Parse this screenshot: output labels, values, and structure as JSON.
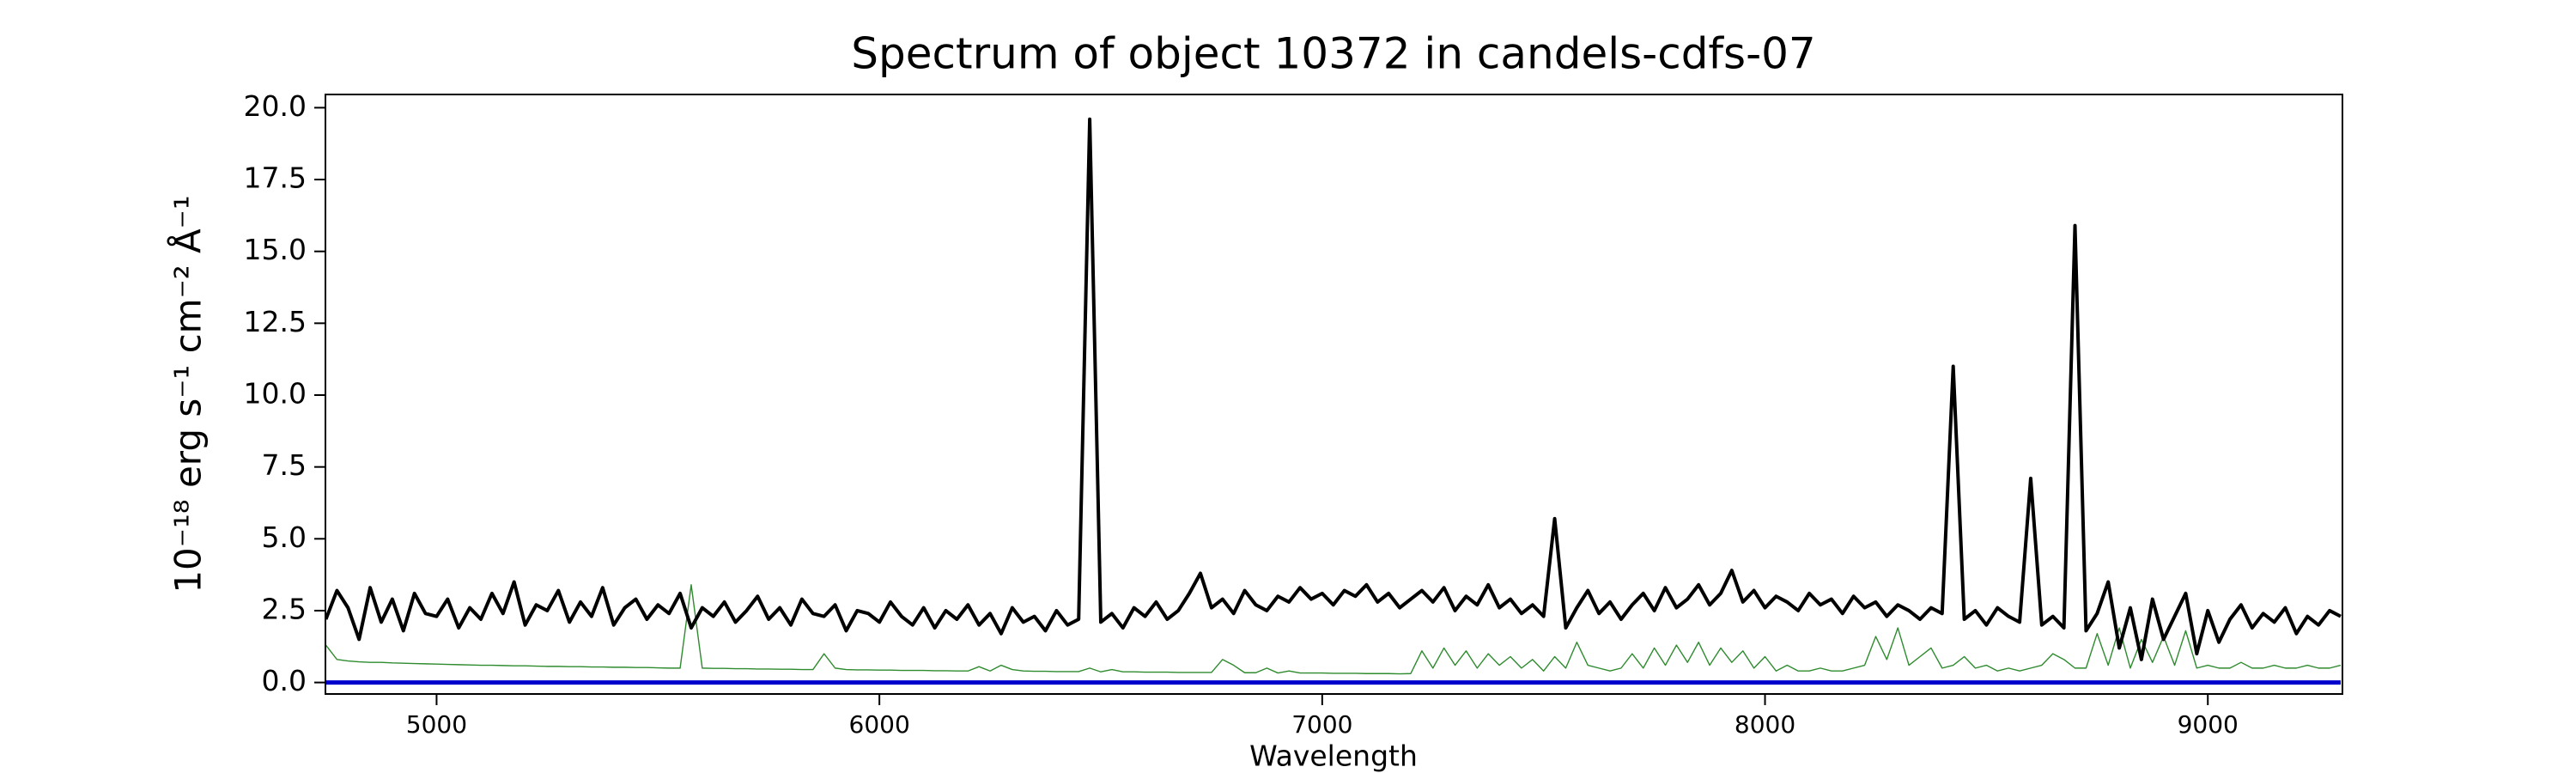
{
  "chart_data": {
    "type": "line",
    "title": "Spectrum of object 10372 in candels-cdfs-07",
    "x_label": "Wavelength",
    "y_label": "10⁻¹⁸ erg s⁻¹ cm⁻² Å⁻¹",
    "xlim": [
      4749,
      9304
    ],
    "ylim": [
      -0.4,
      20.46
    ],
    "xticks": [
      5000,
      6000,
      7000,
      8000,
      9000
    ],
    "yticks": [
      {
        "value": 0,
        "label": "0.0"
      },
      2.5,
      {
        "value": 5,
        "label": "5.0"
      },
      7.5,
      {
        "value": 10,
        "label": "10.0"
      },
      12.5,
      {
        "value": 15,
        "label": "15.0"
      },
      17.5,
      {
        "value": 20,
        "label": "20.0"
      }
    ],
    "x": [
      4750,
      4775,
      4800,
      4825,
      4850,
      4875,
      4900,
      4925,
      4950,
      4975,
      5000,
      5025,
      5050,
      5075,
      5100,
      5125,
      5150,
      5175,
      5200,
      5225,
      5250,
      5275,
      5300,
      5325,
      5350,
      5375,
      5400,
      5425,
      5450,
      5475,
      5500,
      5525,
      5550,
      5575,
      5600,
      5625,
      5650,
      5675,
      5700,
      5725,
      5750,
      5775,
      5800,
      5825,
      5850,
      5875,
      5900,
      5925,
      5950,
      5975,
      6000,
      6025,
      6050,
      6075,
      6100,
      6125,
      6150,
      6175,
      6200,
      6225,
      6250,
      6275,
      6300,
      6325,
      6350,
      6375,
      6400,
      6425,
      6450,
      6475,
      6500,
      6525,
      6550,
      6575,
      6600,
      6625,
      6650,
      6675,
      6700,
      6725,
      6750,
      6775,
      6800,
      6825,
      6850,
      6875,
      6900,
      6925,
      6950,
      6975,
      7000,
      7025,
      7050,
      7075,
      7100,
      7125,
      7150,
      7175,
      7200,
      7225,
      7250,
      7275,
      7300,
      7325,
      7350,
      7375,
      7400,
      7425,
      7450,
      7475,
      7500,
      7525,
      7550,
      7575,
      7600,
      7625,
      7650,
      7675,
      7700,
      7725,
      7750,
      7775,
      7800,
      7825,
      7850,
      7875,
      7900,
      7925,
      7950,
      7975,
      8000,
      8025,
      8050,
      8075,
      8100,
      8125,
      8150,
      8175,
      8200,
      8225,
      8250,
      8275,
      8300,
      8325,
      8350,
      8375,
      8400,
      8425,
      8450,
      8475,
      8500,
      8525,
      8550,
      8575,
      8600,
      8625,
      8650,
      8675,
      8700,
      8725,
      8750,
      8775,
      8800,
      8825,
      8850,
      8875,
      8900,
      8925,
      8950,
      8975,
      9000,
      9025,
      9050,
      9075,
      9100,
      9125,
      9150,
      9175,
      9200,
      9225,
      9250,
      9275,
      9300
    ],
    "series": [
      {
        "color": "#000000",
        "width": 4,
        "values": [
          2.2,
          3.2,
          2.6,
          1.5,
          3.3,
          2.1,
          2.9,
          1.8,
          3.1,
          2.4,
          2.3,
          2.9,
          1.9,
          2.6,
          2.2,
          3.1,
          2.4,
          3.5,
          2.0,
          2.7,
          2.5,
          3.2,
          2.1,
          2.8,
          2.3,
          3.3,
          2.0,
          2.6,
          2.9,
          2.2,
          2.7,
          2.4,
          3.1,
          1.9,
          2.6,
          2.3,
          2.8,
          2.1,
          2.5,
          3.0,
          2.2,
          2.6,
          2.0,
          2.9,
          2.4,
          2.3,
          2.7,
          1.8,
          2.5,
          2.4,
          2.1,
          2.8,
          2.3,
          2.0,
          2.6,
          1.9,
          2.5,
          2.2,
          2.7,
          2.0,
          2.4,
          1.7,
          2.6,
          2.1,
          2.3,
          1.8,
          2.5,
          2.0,
          2.2,
          19.6,
          2.1,
          2.4,
          1.9,
          2.6,
          2.3,
          2.8,
          2.2,
          2.5,
          3.1,
          3.8,
          2.6,
          2.9,
          2.4,
          3.2,
          2.7,
          2.5,
          3.0,
          2.8,
          3.3,
          2.9,
          3.1,
          2.7,
          3.2,
          3.0,
          3.4,
          2.8,
          3.1,
          2.6,
          2.9,
          3.2,
          2.8,
          3.3,
          2.5,
          3.0,
          2.7,
          3.4,
          2.6,
          2.9,
          2.4,
          2.7,
          2.3,
          5.7,
          1.9,
          2.6,
          3.2,
          2.4,
          2.8,
          2.2,
          2.7,
          3.1,
          2.5,
          3.3,
          2.6,
          2.9,
          3.4,
          2.7,
          3.1,
          3.9,
          2.8,
          3.2,
          2.6,
          3.0,
          2.8,
          2.5,
          3.1,
          2.7,
          2.9,
          2.4,
          3.0,
          2.6,
          2.8,
          2.3,
          2.7,
          2.5,
          2.2,
          2.6,
          2.4,
          11.0,
          2.2,
          2.5,
          2.0,
          2.6,
          2.3,
          2.1,
          7.1,
          2.0,
          2.3,
          1.9,
          15.9,
          1.8,
          2.4,
          3.5,
          1.2,
          2.6,
          0.8,
          2.9,
          1.5,
          2.3,
          3.1,
          1.0,
          2.5,
          1.4,
          2.2,
          2.7,
          1.9,
          2.4,
          2.1,
          2.6,
          1.7,
          2.3,
          2.0,
          2.5,
          2.3
        ]
      },
      {
        "color": "#2e8b2e",
        "width": 1.4,
        "values": [
          1.3,
          0.8,
          0.75,
          0.72,
          0.7,
          0.7,
          0.68,
          0.67,
          0.66,
          0.65,
          0.64,
          0.63,
          0.62,
          0.61,
          0.6,
          0.6,
          0.59,
          0.58,
          0.58,
          0.57,
          0.56,
          0.56,
          0.55,
          0.55,
          0.54,
          0.54,
          0.53,
          0.53,
          0.52,
          0.52,
          0.51,
          0.5,
          0.5,
          3.4,
          0.5,
          0.49,
          0.49,
          0.48,
          0.48,
          0.47,
          0.47,
          0.46,
          0.46,
          0.45,
          0.45,
          1.0,
          0.5,
          0.45,
          0.44,
          0.44,
          0.43,
          0.43,
          0.42,
          0.42,
          0.42,
          0.41,
          0.41,
          0.4,
          0.4,
          0.55,
          0.4,
          0.6,
          0.45,
          0.4,
          0.39,
          0.39,
          0.38,
          0.38,
          0.38,
          0.5,
          0.37,
          0.45,
          0.37,
          0.37,
          0.36,
          0.36,
          0.36,
          0.35,
          0.35,
          0.35,
          0.35,
          0.8,
          0.6,
          0.34,
          0.34,
          0.5,
          0.33,
          0.4,
          0.33,
          0.33,
          0.33,
          0.32,
          0.32,
          0.32,
          0.31,
          0.31,
          0.31,
          0.3,
          0.31,
          1.1,
          0.5,
          1.2,
          0.6,
          1.1,
          0.5,
          1.0,
          0.6,
          0.9,
          0.5,
          0.8,
          0.4,
          0.9,
          0.5,
          1.4,
          0.6,
          0.5,
          0.4,
          0.5,
          1.0,
          0.5,
          1.2,
          0.6,
          1.3,
          0.7,
          1.4,
          0.6,
          1.2,
          0.7,
          1.1,
          0.5,
          0.9,
          0.4,
          0.6,
          0.4,
          0.4,
          0.5,
          0.4,
          0.4,
          0.5,
          0.6,
          1.6,
          0.8,
          1.9,
          0.6,
          0.9,
          1.2,
          0.5,
          0.6,
          0.9,
          0.5,
          0.6,
          0.4,
          0.5,
          0.4,
          0.5,
          0.6,
          1.0,
          0.8,
          0.5,
          0.5,
          1.7,
          0.6,
          1.9,
          0.5,
          1.5,
          0.7,
          1.6,
          0.6,
          1.8,
          0.5,
          0.6,
          0.5,
          0.5,
          0.7,
          0.5,
          0.5,
          0.6,
          0.5,
          0.5,
          0.6,
          0.5,
          0.5,
          0.6
        ]
      },
      {
        "color": "#0000cc",
        "width": 5,
        "values": [
          0,
          0,
          0,
          0,
          0,
          0,
          0,
          0,
          0,
          0,
          0,
          0,
          0,
          0,
          0,
          0,
          0,
          0,
          0,
          0,
          0,
          0,
          0,
          0,
          0,
          0,
          0,
          0,
          0,
          0,
          0,
          0,
          0,
          0,
          0,
          0,
          0,
          0,
          0,
          0,
          0,
          0,
          0,
          0,
          0,
          0,
          0,
          0,
          0,
          0,
          0,
          0,
          0,
          0,
          0,
          0,
          0,
          0,
          0,
          0,
          0,
          0,
          0,
          0,
          0,
          0,
          0,
          0,
          0,
          0,
          0,
          0,
          0,
          0,
          0,
          0,
          0,
          0,
          0,
          0,
          0,
          0,
          0,
          0,
          0,
          0,
          0,
          0,
          0,
          0,
          0,
          0,
          0,
          0,
          0,
          0,
          0,
          0,
          0,
          0,
          0,
          0,
          0,
          0,
          0,
          0,
          0,
          0,
          0,
          0,
          0,
          0,
          0,
          0,
          0,
          0,
          0,
          0,
          0,
          0,
          0,
          0,
          0,
          0,
          0,
          0,
          0,
          0,
          0,
          0,
          0,
          0,
          0,
          0,
          0,
          0,
          0,
          0,
          0,
          0,
          0,
          0,
          0,
          0,
          0,
          0,
          0,
          0,
          0,
          0,
          0,
          0,
          0,
          0,
          0,
          0,
          0,
          0,
          0,
          0,
          0,
          0,
          0,
          0,
          0,
          0,
          0,
          0,
          0,
          0,
          0,
          0,
          0,
          0,
          0,
          0,
          0,
          0,
          0,
          0,
          0,
          0,
          0
        ]
      }
    ]
  }
}
